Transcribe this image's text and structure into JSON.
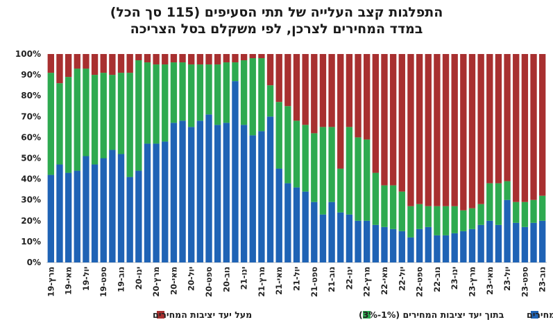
{
  "chart_data": {
    "type": "bar",
    "stacked": true,
    "title_lines": [
      "התפלגות קצב העלייה של תתי הסעיפים (115 סך הכל)",
      "במדד המחירים לצרכן, לפי משקלם בסל הצריכה"
    ],
    "ylim": [
      0,
      100
    ],
    "y_ticks": [
      "0%",
      "10%",
      "20%",
      "30%",
      "40%",
      "50%",
      "60%",
      "70%",
      "80%",
      "90%",
      "100%"
    ],
    "categories": [
      "מרץ-19",
      "",
      "מאי-19",
      "",
      "יול-19",
      "",
      "ספט-19",
      "",
      "נוב-19",
      "",
      "ינו-20",
      "",
      "מרץ-20",
      "",
      "מאי-20",
      "",
      "יול-20",
      "",
      "ספט-20",
      "",
      "נוב-20",
      "",
      "ינו-21",
      "",
      "מרץ-21",
      "",
      "מאי-21",
      "",
      "יול-21",
      "",
      "ספט-21",
      "",
      "נוב-21",
      "",
      "ינו-22",
      "",
      "מרץ-22",
      "",
      "מאי-22",
      "",
      "יול-22",
      "",
      "ספט-22",
      "",
      "נוב-22",
      "",
      "ינו-23",
      "",
      "מרץ-23",
      "",
      "מאי-23",
      "",
      "יול-23",
      "",
      "ספט-23",
      "",
      "נוב-23"
    ],
    "series": [
      {
        "name": "מתחת ליעד יציבות המחירים",
        "color": "#1f63b5",
        "values": [
          42,
          47,
          43,
          44,
          51,
          47,
          50,
          54,
          52,
          41,
          44,
          57,
          57,
          58,
          67,
          68,
          65,
          68,
          71,
          66,
          67,
          87,
          66,
          61,
          63,
          70,
          45,
          38,
          36,
          34,
          29,
          23,
          29,
          24,
          23,
          20,
          20,
          18,
          17,
          16,
          15,
          12,
          16,
          17,
          13,
          13,
          14,
          15,
          16,
          18,
          20,
          18,
          30,
          19,
          17,
          19,
          20
        ]
      },
      {
        "name": "בתוך יעד יציבות המחירים (1%-3%)",
        "color": "#2eaa50",
        "values": [
          49,
          39,
          46,
          49,
          42,
          43,
          41,
          36,
          39,
          50,
          53,
          39,
          38,
          37,
          29,
          28,
          30,
          27,
          24,
          29,
          29,
          9,
          31,
          37,
          35,
          15,
          32,
          37,
          32,
          32,
          33,
          42,
          36,
          21,
          42,
          40,
          39,
          25,
          20,
          21,
          19,
          15,
          12,
          10,
          14,
          14,
          13,
          10,
          10,
          10,
          18,
          20,
          9,
          10,
          12,
          11,
          12
        ]
      },
      {
        "name": "מעל יעד יציבות המחירים",
        "color": "#a83030",
        "values": [
          9,
          14,
          11,
          7,
          7,
          10,
          9,
          10,
          9,
          9,
          3,
          4,
          5,
          5,
          4,
          4,
          5,
          5,
          5,
          5,
          4,
          4,
          3,
          2,
          2,
          15,
          23,
          25,
          32,
          34,
          38,
          35,
          35,
          55,
          35,
          40,
          41,
          57,
          63,
          63,
          66,
          73,
          72,
          73,
          73,
          73,
          73,
          75,
          74,
          72,
          62,
          62,
          61,
          71,
          71,
          70,
          68
        ]
      }
    ]
  }
}
